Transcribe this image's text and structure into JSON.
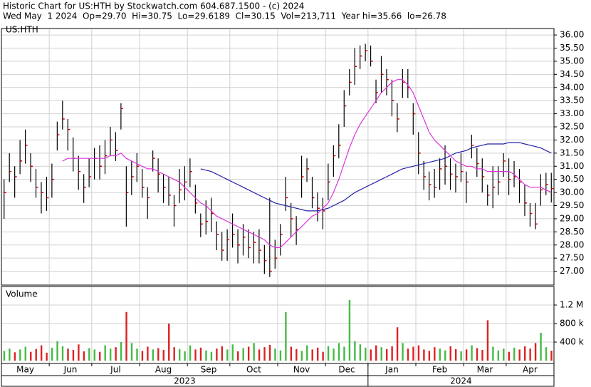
{
  "chart_data": {
    "type": "ohlc",
    "title": "Historic Chart for US:HTH by Stockwatch.com 604.687.1500 - (c) 2024",
    "subtitle": "Wed May  1 2024  Op=29.70  Hi=30.75  Lo=29.6189  Cl=30.15  Vol=213,711  Year hi=35.66  lo=26.78",
    "symbol": "US:HTH",
    "volume_label": "Volume",
    "categories": [
      "May",
      null,
      null,
      null,
      null,
      null,
      null,
      null,
      null,
      "Jun",
      null,
      null,
      null,
      null,
      null,
      null,
      null,
      "Jul",
      null,
      null,
      null,
      null,
      null,
      null,
      null,
      null,
      "Aug",
      null,
      null,
      null,
      null,
      null,
      null,
      null,
      null,
      "Sep",
      null,
      null,
      null,
      null,
      null,
      null,
      null,
      "Oct",
      null,
      null,
      null,
      null,
      null,
      null,
      null,
      null,
      "Nov",
      null,
      null,
      null,
      null,
      null,
      null,
      null,
      null,
      "Dec",
      null,
      null,
      null,
      null,
      null,
      null,
      null,
      "Jan",
      null,
      null,
      null,
      null,
      null,
      null,
      null,
      null,
      "Feb",
      null,
      null,
      null,
      null,
      null,
      null,
      null,
      null,
      "Mar",
      null,
      null,
      null,
      null,
      null,
      null,
      null,
      "Apr",
      null,
      null,
      null,
      null,
      null,
      null,
      null,
      null
    ],
    "years": [
      "2023",
      null,
      null,
      null,
      null,
      null,
      null,
      null,
      null,
      null,
      null,
      null,
      null,
      null,
      null,
      null,
      null,
      null,
      null,
      null,
      null,
      null,
      null,
      null,
      null,
      null,
      null,
      null,
      null,
      null,
      null,
      null,
      null,
      null,
      null,
      null,
      null,
      null,
      null,
      null,
      null,
      null,
      null,
      null,
      null,
      null,
      null,
      null,
      null,
      null,
      null,
      null,
      null,
      null,
      null,
      null,
      null,
      null,
      null,
      null,
      null,
      null,
      null,
      null,
      null,
      null,
      null,
      null,
      null,
      "2024",
      null,
      null,
      null,
      null,
      null,
      null,
      null,
      null,
      null,
      null,
      null,
      null,
      null,
      null,
      null,
      null,
      null,
      null,
      null,
      null,
      null,
      null,
      null,
      null,
      null,
      null,
      null,
      null,
      null,
      null,
      null,
      null,
      null,
      null
    ],
    "high": [
      30.5,
      31.5,
      31.0,
      32.0,
      32.4,
      31.5,
      30.9,
      30.4,
      30.6,
      31.1,
      32.7,
      33.5,
      32.8,
      32.1,
      31.4,
      30.7,
      31.3,
      31.7,
      31.8,
      32.0,
      32.5,
      32.3,
      33.4,
      31.0,
      31.2,
      31.5,
      30.9,
      30.2,
      31.6,
      31.3,
      30.7,
      30.6,
      29.9,
      30.9,
      31.0,
      31.3,
      30.3,
      29.2,
      29.7,
      29.8,
      28.9,
      28.5,
      28.6,
      29.2,
      28.6,
      28.8,
      28.6,
      28.5,
      28.6,
      28.0,
      29.8,
      28.2,
      28.8,
      30.6,
      29.6,
      29.1,
      31.4,
      31.3,
      30.6,
      30.0,
      29.8,
      31.1,
      31.8,
      32.6,
      33.9,
      34.7,
      35.5,
      35.6,
      35.66,
      35.6,
      34.3,
      35.2,
      34.7,
      34.3,
      33.4,
      34.7,
      34.7,
      33.4,
      32.3,
      31.2,
      30.8,
      30.9,
      31.3,
      31.8,
      31.3,
      31.1,
      31.5,
      30.8,
      32.2,
      31.7,
      31.3,
      30.3,
      31.0,
      31.0,
      31.5,
      31.3,
      31.2,
      30.9,
      30.3,
      29.6,
      29.6,
      30.7,
      30.75,
      30.75
    ],
    "low": [
      29.0,
      30.4,
      29.8,
      30.7,
      31.1,
      30.4,
      29.8,
      29.2,
      29.3,
      29.8,
      31.6,
      32.4,
      31.6,
      30.8,
      30.1,
      29.6,
      30.2,
      30.5,
      30.5,
      30.7,
      31.4,
      31.2,
      32.4,
      28.7,
      29.9,
      30.4,
      29.8,
      29.0,
      30.8,
      30.0,
      29.6,
      29.5,
      28.7,
      29.6,
      29.7,
      30.2,
      29.2,
      28.3,
      28.4,
      28.5,
      27.8,
      27.4,
      27.4,
      27.9,
      27.3,
      27.6,
      27.5,
      27.3,
      27.3,
      26.9,
      26.78,
      27.1,
      27.6,
      29.3,
      28.3,
      28.0,
      29.8,
      30.4,
      29.4,
      28.9,
      28.6,
      29.7,
      30.6,
      31.3,
      32.5,
      33.7,
      34.1,
      34.7,
      35.0,
      34.8,
      33.4,
      33.8,
      33.7,
      32.9,
      32.3,
      33.6,
      33.6,
      32.2,
      30.7,
      30.1,
      29.7,
      29.8,
      30.1,
      30.3,
      30.1,
      30.0,
      30.4,
      29.6,
      31.3,
      30.6,
      30.0,
      29.5,
      29.4,
      29.9,
      30.6,
      29.9,
      30.2,
      29.6,
      29.1,
      28.7,
      28.6,
      29.5,
      29.9,
      29.6189
    ],
    "close": [
      30.0,
      30.8,
      30.6,
      31.2,
      31.8,
      31.0,
      30.2,
      30.0,
      29.8,
      30.5,
      32.2,
      32.8,
      32.4,
      31.3,
      30.8,
      30.2,
      30.6,
      31.3,
      31.0,
      31.4,
      32.0,
      31.6,
      33.2,
      30.0,
      30.6,
      31.0,
      30.2,
      29.8,
      31.3,
      30.7,
      30.2,
      29.9,
      29.5,
      30.1,
      30.4,
      30.8,
      29.6,
      28.8,
      28.9,
      29.2,
      28.4,
      27.8,
      28.2,
      28.4,
      28.0,
      28.3,
      27.9,
      28.1,
      27.8,
      27.4,
      27.0,
      27.5,
      28.4,
      29.8,
      29.0,
      28.6,
      30.6,
      30.9,
      29.8,
      29.4,
      29.3,
      30.4,
      31.4,
      31.8,
      33.3,
      34.2,
      34.8,
      35.2,
      35.4,
      35.0,
      33.8,
      34.5,
      34.3,
      33.5,
      32.8,
      34.2,
      34.0,
      33.0,
      31.5,
      30.6,
      30.3,
      30.2,
      30.9,
      31.0,
      30.7,
      30.6,
      30.8,
      30.4,
      31.8,
      31.1,
      30.6,
      29.9,
      30.2,
      30.4,
      31.2,
      30.5,
      30.6,
      30.4,
      29.6,
      29.2,
      28.8,
      30.1,
      30.3,
      30.15
    ],
    "volume": [
      210000,
      260000,
      180000,
      240000,
      300000,
      190000,
      250000,
      330000,
      170000,
      280000,
      420000,
      310000,
      260000,
      230000,
      350000,
      200000,
      270000,
      240000,
      190000,
      330000,
      260000,
      290000,
      400000,
      1050000,
      380000,
      260000,
      210000,
      300000,
      240000,
      270000,
      230000,
      800000,
      290000,
      250000,
      200000,
      330000,
      240000,
      280000,
      220000,
      190000,
      260000,
      310000,
      240000,
      350000,
      200000,
      270000,
      300000,
      380000,
      240000,
      290000,
      340000,
      260000,
      220000,
      1050000,
      300000,
      250000,
      210000,
      330000,
      240000,
      280000,
      190000,
      310000,
      260000,
      380000,
      300000,
      1310000,
      420000,
      350000,
      280000,
      240000,
      330000,
      290000,
      250000,
      310000,
      720000,
      380000,
      260000,
      300000,
      330000,
      240000,
      210000,
      290000,
      260000,
      220000,
      310000,
      250000,
      200000,
      240000,
      330000,
      270000,
      230000,
      870000,
      300000,
      220000,
      260000,
      190000,
      280000,
      240000,
      310000,
      260000,
      380000,
      600000,
      290000,
      213711
    ],
    "ma_short": {
      "color": "#dd33dd",
      "values": [
        null,
        null,
        null,
        null,
        null,
        null,
        null,
        null,
        null,
        null,
        null,
        31.2,
        31.3,
        31.3,
        31.3,
        31.3,
        31.3,
        31.3,
        31.3,
        31.3,
        31.4,
        31.4,
        31.5,
        31.3,
        31.2,
        31.1,
        31.0,
        30.9,
        30.9,
        30.8,
        30.7,
        30.6,
        30.5,
        30.4,
        30.2,
        30.0,
        29.8,
        29.6,
        29.5,
        29.3,
        29.1,
        29.0,
        28.9,
        28.8,
        28.7,
        28.6,
        28.5,
        28.4,
        28.3,
        28.2,
        28.0,
        27.9,
        27.9,
        28.1,
        28.3,
        28.5,
        28.7,
        28.9,
        29.1,
        29.2,
        29.4,
        29.6,
        30.0,
        30.5,
        31.1,
        31.7,
        32.2,
        32.6,
        32.9,
        33.2,
        33.5,
        33.8,
        34.0,
        34.2,
        34.3,
        34.3,
        34.1,
        33.8,
        33.3,
        32.8,
        32.3,
        32.0,
        31.8,
        31.6,
        31.4,
        31.2,
        31.1,
        31.0,
        31.0,
        30.9,
        30.9,
        30.8,
        30.8,
        30.8,
        30.8,
        30.8,
        30.7,
        30.5,
        30.3,
        30.2,
        30.2,
        30.2,
        30.1,
        30.0
      ]
    },
    "ma_long": {
      "color": "#2222aa",
      "values": [
        null,
        null,
        null,
        null,
        null,
        null,
        null,
        null,
        null,
        null,
        null,
        null,
        null,
        null,
        null,
        null,
        null,
        null,
        null,
        null,
        null,
        null,
        null,
        null,
        null,
        null,
        null,
        null,
        null,
        null,
        null,
        null,
        null,
        null,
        null,
        null,
        null,
        30.9,
        30.85,
        30.8,
        30.7,
        30.6,
        30.5,
        30.4,
        30.3,
        30.2,
        30.1,
        30.0,
        29.9,
        29.8,
        29.7,
        29.6,
        29.55,
        29.5,
        29.45,
        29.4,
        29.35,
        29.3,
        29.3,
        29.3,
        29.35,
        29.4,
        29.5,
        29.6,
        29.7,
        29.85,
        30.0,
        30.1,
        30.2,
        30.3,
        30.4,
        30.5,
        30.6,
        30.7,
        30.8,
        30.9,
        30.95,
        31.0,
        31.05,
        31.1,
        31.15,
        31.2,
        31.25,
        31.3,
        31.4,
        31.5,
        31.55,
        31.6,
        31.7,
        31.75,
        31.8,
        31.85,
        31.85,
        31.85,
        31.85,
        31.9,
        31.9,
        31.9,
        31.85,
        31.8,
        31.75,
        31.7,
        31.6,
        31.5
      ]
    },
    "bar_color": "#000000",
    "close_color": "#cc0000",
    "up_color": "#44bb44",
    "down_color": "#dd2222",
    "ylim": [
      26.5,
      36.22
    ],
    "yticks": [
      {
        "value": 27,
        "label": "27.00"
      },
      {
        "value": 27.5,
        "label": "27.50"
      },
      {
        "value": 28,
        "label": "28.00"
      },
      {
        "value": 28.5,
        "label": "28.50"
      },
      {
        "value": 29,
        "label": "29.00"
      },
      {
        "value": 29.5,
        "label": "29.50"
      },
      {
        "value": 30,
        "label": "30.00"
      },
      {
        "value": 30.5,
        "label": "30.50"
      },
      {
        "value": 31,
        "label": "31.00"
      },
      {
        "value": 31.5,
        "label": "31.50"
      },
      {
        "value": 32,
        "label": "32.00"
      },
      {
        "value": 32.5,
        "label": "32.50"
      },
      {
        "value": 33,
        "label": "33.00"
      },
      {
        "value": 33.5,
        "label": "33.50"
      },
      {
        "value": 34,
        "label": "34.00"
      },
      {
        "value": 34.5,
        "label": "34.50"
      },
      {
        "value": 35,
        "label": "35.00"
      },
      {
        "value": 35.5,
        "label": "35.50"
      },
      {
        "value": 36,
        "label": "36.00"
      }
    ],
    "y2lim": [
      0,
      1600000
    ],
    "y2ticks": [
      {
        "value": 400000,
        "label": "400 k"
      },
      {
        "value": 800000,
        "label": "800 k"
      },
      {
        "value": 1200000,
        "label": "1.2 M"
      }
    ],
    "grid": true
  }
}
